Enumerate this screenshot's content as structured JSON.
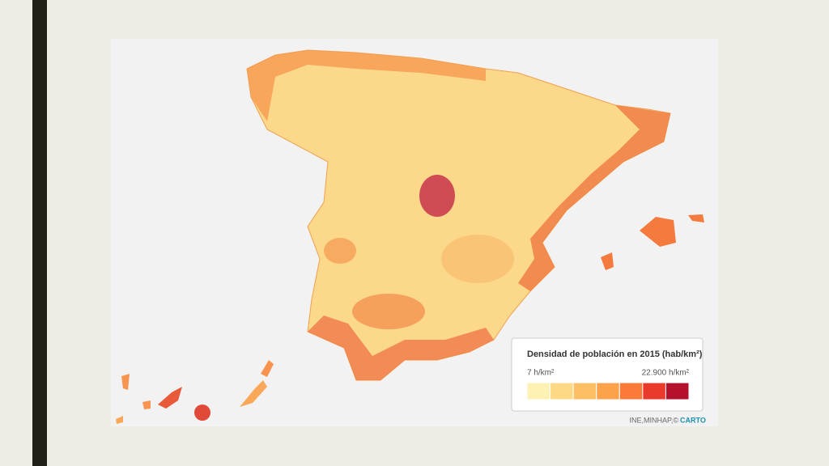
{
  "legend": {
    "title": "Densidad de población en 2015 (hab/km²)",
    "min_label": "7 h/km²",
    "max_label": "22.900 h/km²",
    "colors": [
      "#fdf1b3",
      "#fdd985",
      "#fdbf63",
      "#fca24b",
      "#fb7a3a",
      "#ea3a2c",
      "#b5112d"
    ]
  },
  "attribution": {
    "text": "INE,MINHAP,©",
    "brand": "CARTO"
  }
}
